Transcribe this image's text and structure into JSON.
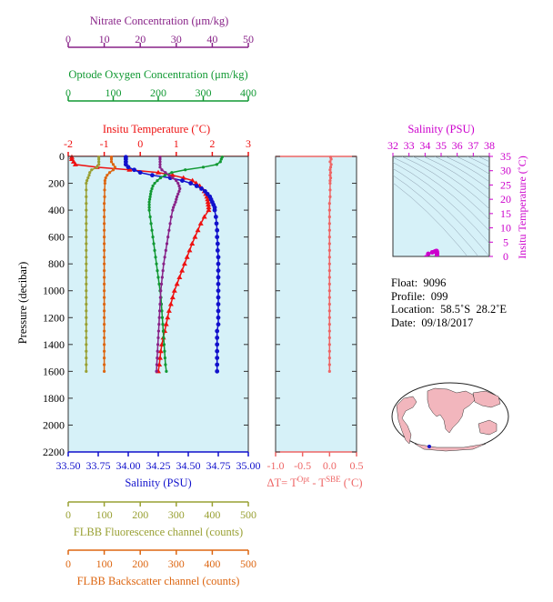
{
  "float_info": {
    "float": "Float:  9096",
    "profile": "Profile:  099",
    "location": "Location:  58.5˚S  28.2˚E",
    "date": "Date:  09/18/2017"
  },
  "colors": {
    "temperature": "#ee1111",
    "salinity": "#1111cc",
    "oxygen": "#119933",
    "nitrate": "#882288",
    "fluorescence": "#99a033",
    "backscatter": "#dd6611",
    "delta_t": "#ee6666",
    "ts_axis": "#cc00cc",
    "plot_bg": "#d6f1f8"
  },
  "chart_data": [
    {
      "type": "line",
      "name": "profiles",
      "ylabel": "Pressure (decibar)",
      "ylim": [
        2200,
        0
      ],
      "yticks": [
        0,
        200,
        400,
        600,
        800,
        1000,
        1200,
        1400,
        1600,
        1800,
        2000,
        2200
      ],
      "grid": false,
      "axes": {
        "nitrate": {
          "label": "Nitrate Concentration (μm/kg)",
          "range": [
            0,
            50
          ],
          "ticks": [
            0,
            10,
            20,
            30,
            40,
            50
          ]
        },
        "oxygen": {
          "label": "Optode Oxygen Concentration (μm/kg)",
          "range": [
            0,
            400
          ],
          "ticks": [
            0,
            100,
            200,
            300,
            400
          ]
        },
        "temperature": {
          "label": "Insitu Temperature (˚C)",
          "range": [
            -2,
            3
          ],
          "ticks": [
            -2,
            -1,
            0,
            1,
            2,
            3
          ]
        },
        "salinity": {
          "label": "Salinity (PSU)",
          "range": [
            33.5,
            35.0
          ],
          "ticks": [
            "33.50",
            "33.75",
            "34.00",
            "34.25",
            "34.50",
            "34.75",
            "35.00"
          ]
        },
        "fluorescence": {
          "label": "FLBB Fluorescence channel (counts)",
          "range": [
            0,
            500
          ],
          "ticks": [
            0,
            100,
            200,
            300,
            400,
            500
          ]
        },
        "backscatter": {
          "label": "FLBB Backscatter channel (counts)",
          "range": [
            0,
            500
          ],
          "ticks": [
            0,
            100,
            200,
            300,
            400,
            500
          ]
        }
      },
      "series": [
        {
          "name": "temperature",
          "axis": "temperature",
          "marker": "triangle",
          "pressure": [
            5,
            20,
            40,
            60,
            80,
            100,
            120,
            140,
            160,
            180,
            200,
            220,
            240,
            260,
            280,
            300,
            320,
            340,
            360,
            380,
            400,
            450,
            500,
            550,
            600,
            650,
            700,
            750,
            800,
            850,
            900,
            950,
            1000,
            1050,
            1100,
            1150,
            1200,
            1250,
            1300,
            1350,
            1400,
            1450,
            1500,
            1550,
            1600
          ],
          "values": [
            -1.9,
            -1.9,
            -1.85,
            -1.8,
            -1.2,
            -0.3,
            0.5,
            0.9,
            1.2,
            1.45,
            1.55,
            1.65,
            1.72,
            1.78,
            1.82,
            1.85,
            1.87,
            1.88,
            1.89,
            1.9,
            1.9,
            1.78,
            1.68,
            1.6,
            1.52,
            1.44,
            1.37,
            1.3,
            1.23,
            1.16,
            1.09,
            1.02,
            0.95,
            0.9,
            0.85,
            0.8,
            0.76,
            0.72,
            0.68,
            0.64,
            0.6,
            0.57,
            0.55,
            0.53,
            0.5
          ]
        },
        {
          "name": "salinity",
          "axis": "salinity",
          "marker": "circle",
          "pressure": [
            5,
            20,
            40,
            60,
            80,
            100,
            120,
            140,
            160,
            180,
            200,
            220,
            240,
            260,
            280,
            300,
            320,
            340,
            360,
            380,
            400,
            450,
            500,
            550,
            600,
            650,
            700,
            750,
            800,
            850,
            900,
            950,
            1000,
            1050,
            1100,
            1150,
            1200,
            1250,
            1300,
            1350,
            1400,
            1450,
            1500,
            1550,
            1600
          ],
          "values": [
            33.98,
            33.98,
            33.98,
            33.98,
            34.0,
            34.05,
            34.1,
            34.2,
            34.35,
            34.45,
            34.52,
            34.57,
            34.61,
            34.64,
            34.66,
            34.68,
            34.69,
            34.7,
            34.71,
            34.72,
            34.72,
            34.73,
            34.735,
            34.74,
            34.74,
            34.745,
            34.745,
            34.75,
            34.75,
            34.75,
            34.75,
            34.75,
            34.75,
            34.75,
            34.75,
            34.75,
            34.75,
            34.75,
            34.74,
            34.74,
            34.74,
            34.74,
            34.74,
            34.74,
            34.74
          ]
        },
        {
          "name": "oxygen",
          "axis": "oxygen",
          "marker": "dot",
          "pressure": [
            5,
            20,
            40,
            60,
            80,
            100,
            120,
            140,
            160,
            180,
            200,
            220,
            240,
            260,
            280,
            300,
            320,
            340,
            360,
            380,
            400,
            450,
            500,
            550,
            600,
            650,
            700,
            750,
            800,
            850,
            900,
            950,
            1000,
            1050,
            1100,
            1150,
            1200,
            1250,
            1300,
            1350,
            1400,
            1450,
            1500,
            1550,
            1600
          ],
          "values": [
            342,
            340,
            338,
            330,
            300,
            260,
            230,
            215,
            205,
            198,
            192,
            188,
            186,
            184,
            183,
            182,
            181,
            180,
            180,
            180,
            180,
            182,
            184,
            186,
            188,
            190,
            192,
            194,
            196,
            198,
            200,
            202,
            204,
            206,
            207,
            208,
            209,
            210,
            211,
            212,
            213,
            214,
            215,
            216,
            218
          ]
        },
        {
          "name": "nitrate",
          "axis": "nitrate",
          "marker": "dot",
          "pressure": [
            5,
            20,
            40,
            60,
            80,
            100,
            120,
            140,
            160,
            180,
            200,
            220,
            240,
            260,
            280,
            300,
            320,
            340,
            360,
            380,
            400,
            450,
            500,
            550,
            600,
            650,
            700,
            750,
            800,
            850,
            900,
            950,
            1000,
            1050,
            1100,
            1150,
            1200,
            1250,
            1300,
            1350,
            1400,
            1450,
            1500,
            1550,
            1600
          ],
          "values": [
            25.5,
            25.5,
            25.5,
            25.5,
            25.5,
            26,
            27,
            28,
            29,
            30,
            30.5,
            30.8,
            31,
            30.8,
            30.5,
            30.2,
            30,
            29.8,
            29.5,
            29.2,
            29,
            28.6,
            28.3,
            28,
            27.7,
            27.4,
            27.1,
            26.8,
            26.5,
            26.3,
            26.1,
            25.9,
            25.7,
            25.6,
            25.5,
            25.4,
            25.3,
            25.2,
            25.1,
            25.0,
            24.9,
            24.8,
            24.7,
            24.6,
            24.5
          ]
        },
        {
          "name": "fluorescence",
          "axis": "fluorescence",
          "marker": "dot",
          "pressure": [
            5,
            20,
            40,
            60,
            80,
            100,
            120,
            140,
            160,
            180,
            200,
            250,
            300,
            350,
            400,
            450,
            500,
            550,
            600,
            650,
            700,
            750,
            800,
            850,
            900,
            950,
            1000,
            1050,
            1100,
            1150,
            1200,
            1250,
            1300,
            1350,
            1400,
            1450,
            1500,
            1550,
            1600
          ],
          "values": [
            85,
            85,
            85,
            85,
            80,
            65,
            60,
            58,
            55,
            52,
            50,
            50,
            50,
            50,
            50,
            50,
            50,
            50,
            50,
            50,
            50,
            50,
            50,
            50,
            50,
            50,
            50,
            50,
            50,
            50,
            50,
            50,
            50,
            50,
            50,
            50,
            50,
            50,
            50
          ]
        },
        {
          "name": "backscatter",
          "axis": "backscatter",
          "marker": "dot",
          "pressure": [
            5,
            20,
            40,
            60,
            80,
            100,
            120,
            140,
            160,
            180,
            200,
            250,
            300,
            350,
            400,
            450,
            500,
            550,
            600,
            650,
            700,
            750,
            800,
            850,
            900,
            950,
            1000,
            1050,
            1100,
            1150,
            1200,
            1250,
            1300,
            1350,
            1400,
            1450,
            1500,
            1550,
            1600
          ],
          "values": [
            120,
            120,
            120,
            125,
            130,
            125,
            115,
            108,
            104,
            102,
            102,
            101,
            101,
            100,
            100,
            100,
            100,
            100,
            100,
            100,
            100,
            100,
            100,
            100,
            100,
            100,
            100,
            100,
            100,
            100,
            100,
            100,
            100,
            100,
            100,
            100,
            100,
            100,
            100
          ]
        }
      ]
    },
    {
      "type": "line",
      "name": "delta_t",
      "xlabel": "ΔT= T",
      "xlabel_sup1": "Opt",
      "xlabel_mid": " - T",
      "xlabel_sup2": "SBE",
      "xlabel_end": " (˚C)",
      "xlim": [
        -1.0,
        0.5
      ],
      "xticks": [
        "-1.0",
        "-0.5",
        "0.0",
        "0.5"
      ],
      "ylim": [
        2200,
        0
      ],
      "series": [
        {
          "name": "delta_t",
          "pressure": [
            5,
            20,
            40,
            60,
            80,
            100,
            120,
            140,
            160,
            180,
            200,
            250,
            300,
            350,
            400,
            450,
            500,
            550,
            600,
            650,
            700,
            750,
            800,
            850,
            900,
            950,
            1000,
            1050,
            1100,
            1150,
            1200,
            1250,
            1300,
            1350,
            1400,
            1450,
            1500,
            1550,
            1600
          ],
          "values": [
            0.02,
            0.03,
            0.01,
            0.03,
            0.02,
            0.01,
            0.02,
            0.01,
            0.02,
            0.01,
            0.01,
            0.01,
            0.01,
            0.0,
            0.0,
            0.0,
            0.0,
            0.0,
            0.0,
            0.0,
            0.0,
            0.0,
            0.0,
            0.0,
            0.0,
            0.0,
            0.0,
            0.0,
            0.0,
            0.0,
            0.0,
            0.0,
            0.0,
            0.0,
            0.0,
            0.0,
            0.0,
            0.0,
            0.0
          ]
        }
      ]
    },
    {
      "type": "scatter",
      "name": "ts_diagram",
      "title": "Salinity (PSU)",
      "xlim": [
        32,
        38
      ],
      "xticks": [
        32,
        33,
        34,
        35,
        36,
        37,
        38
      ],
      "ylabel": "Insitu Temperature (˚C)",
      "ylim": [
        0,
        35
      ],
      "yticks": [
        0,
        5,
        10,
        15,
        20,
        25,
        30,
        35
      ],
      "series": [
        {
          "name": "ts",
          "x": [
            33.98,
            34.0,
            34.05,
            34.2,
            34.45,
            34.6,
            34.68,
            34.72,
            34.74,
            34.75,
            34.74
          ],
          "y": [
            -1.9,
            -1.8,
            -0.3,
            0.9,
            1.45,
            1.72,
            1.85,
            1.9,
            1.6,
            1.0,
            0.5
          ]
        }
      ]
    }
  ]
}
